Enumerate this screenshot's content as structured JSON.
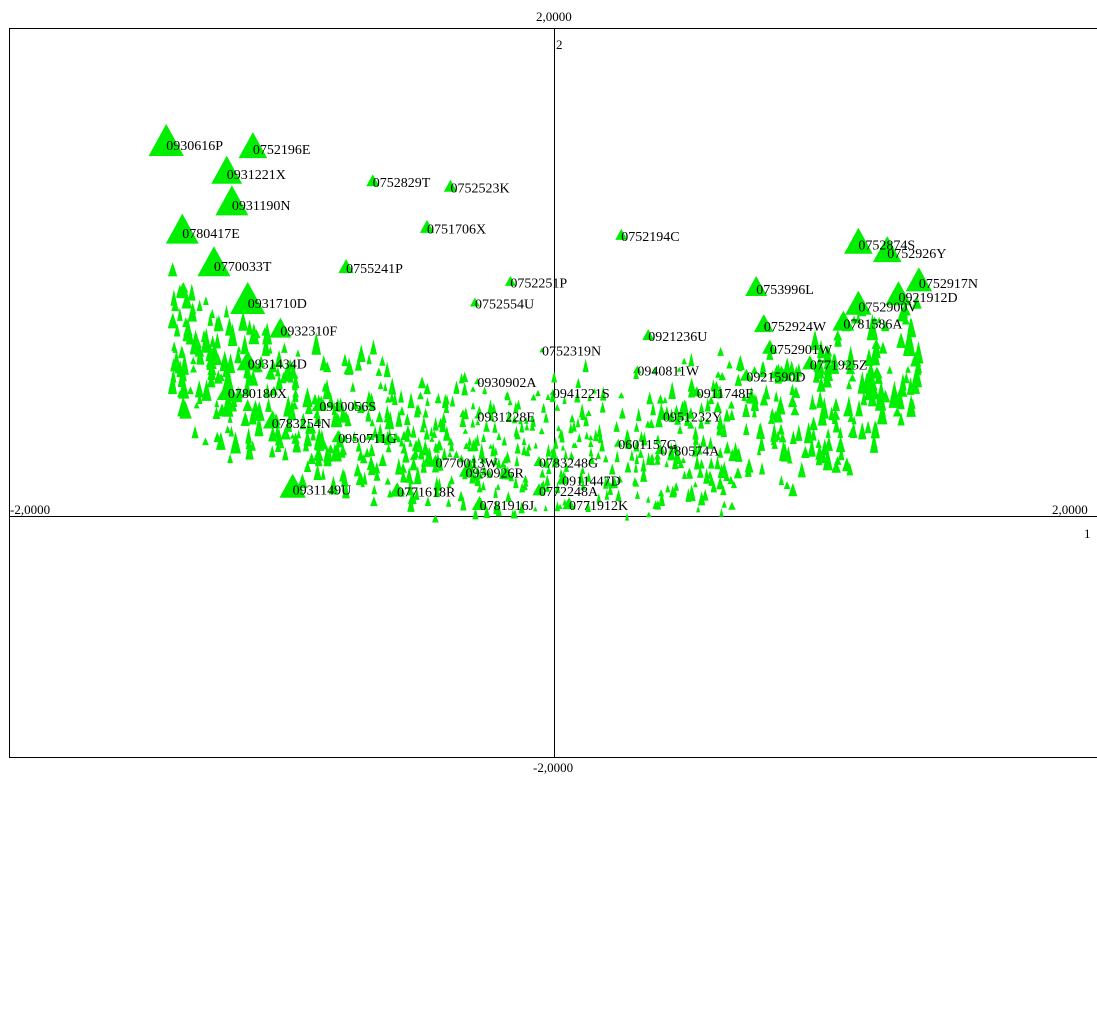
{
  "chart_data": {
    "type": "scatter",
    "title": "",
    "xlabel": "",
    "ylabel": "",
    "xlim": [
      -2,
      2
    ],
    "ylim": [
      -2,
      2
    ],
    "axis_labels": {
      "top": "2,0000",
      "bottom": "-2,0000",
      "left": "-2,0000",
      "right": "2,0000",
      "axis2": "2",
      "axis1": "1"
    },
    "marker_color": "#00ee00",
    "marker_shape": "triangle",
    "grid": false,
    "labeled_points": [
      {
        "label": "0930616P",
        "x": -1.423,
        "y": 1.36,
        "size": 3.2
      },
      {
        "label": "0752196E",
        "x": -1.105,
        "y": 1.337,
        "size": 2.6
      },
      {
        "label": "0931221X",
        "x": -1.201,
        "y": 1.2,
        "size": 2.8
      },
      {
        "label": "0752829T",
        "x": -0.665,
        "y": 1.156,
        "size": 1.2
      },
      {
        "label": "0752523K",
        "x": -0.38,
        "y": 1.126,
        "size": 1.2
      },
      {
        "label": "0931190N",
        "x": -1.182,
        "y": 1.031,
        "size": 3.0
      },
      {
        "label": "0780417E",
        "x": -1.364,
        "y": 0.876,
        "size": 3.0
      },
      {
        "label": "0751706X",
        "x": -0.466,
        "y": 0.902,
        "size": 1.3
      },
      {
        "label": "0752194C",
        "x": 0.247,
        "y": 0.86,
        "size": 1.1
      },
      {
        "label": "0752874S",
        "x": 1.117,
        "y": 0.813,
        "size": 2.6
      },
      {
        "label": "0752926Y",
        "x": 1.223,
        "y": 0.767,
        "size": 2.6
      },
      {
        "label": "0770033T",
        "x": -1.248,
        "y": 0.697,
        "size": 3.0
      },
      {
        "label": "0755241P",
        "x": -0.763,
        "y": 0.684,
        "size": 1.4
      },
      {
        "label": "0752251P",
        "x": -0.16,
        "y": 0.606,
        "size": 1.0
      },
      {
        "label": "0752917N",
        "x": 1.339,
        "y": 0.603,
        "size": 2.4
      },
      {
        "label": "0753996L",
        "x": 0.742,
        "y": 0.57,
        "size": 2.0
      },
      {
        "label": "0921912D",
        "x": 1.264,
        "y": 0.527,
        "size": 2.4
      },
      {
        "label": "0931710D",
        "x": -1.124,
        "y": 0.494,
        "size": 3.2
      },
      {
        "label": "0752554U",
        "x": -0.29,
        "y": 0.491,
        "size": 0.9
      },
      {
        "label": "0752900V",
        "x": 1.117,
        "y": 0.475,
        "size": 2.4
      },
      {
        "label": "0932310F",
        "x": -1.004,
        "y": 0.342,
        "size": 2.0
      },
      {
        "label": "0752924W",
        "x": 0.77,
        "y": 0.368,
        "size": 1.8
      },
      {
        "label": "0781586A",
        "x": 1.062,
        "y": 0.38,
        "size": 2.0
      },
      {
        "label": "0921236U",
        "x": 0.346,
        "y": 0.311,
        "size": 1.1
      },
      {
        "label": "0752319N",
        "x": -0.044,
        "y": 0.232,
        "size": 0.5
      },
      {
        "label": "0752901W",
        "x": 0.792,
        "y": 0.242,
        "size": 1.4
      },
      {
        "label": "0931434D",
        "x": -1.124,
        "y": 0.162,
        "size": 2.0
      },
      {
        "label": "0771925Z",
        "x": 0.939,
        "y": 0.156,
        "size": 1.4
      },
      {
        "label": "0940811W",
        "x": 0.306,
        "y": 0.123,
        "size": 0.8
      },
      {
        "label": "0921590D",
        "x": 0.706,
        "y": 0.09,
        "size": 1.2
      },
      {
        "label": "0930902A",
        "x": -0.281,
        "y": 0.06,
        "size": 0.6
      },
      {
        "label": "0780180X",
        "x": -1.197,
        "y": 0.0,
        "size": 2.0
      },
      {
        "label": "0941221S",
        "x": -0.004,
        "y": 0.0,
        "size": 0.6
      },
      {
        "label": "0911748F",
        "x": 0.524,
        "y": 0.0,
        "size": 1.0
      },
      {
        "label": "0910056S",
        "x": -0.861,
        "y": -0.072,
        "size": 1.4
      },
      {
        "label": "0931228E",
        "x": -0.281,
        "y": -0.128,
        "size": 0.6
      },
      {
        "label": "0951232Y",
        "x": 0.4,
        "y": -0.128,
        "size": 1.0
      },
      {
        "label": "0783254N",
        "x": -1.036,
        "y": -0.164,
        "size": 1.6
      },
      {
        "label": "0950711G",
        "x": -0.792,
        "y": -0.246,
        "size": 1.2
      },
      {
        "label": "0601157G",
        "x": 0.236,
        "y": -0.279,
        "size": 0.8
      },
      {
        "label": "0780574A",
        "x": 0.39,
        "y": -0.315,
        "size": 1.0
      },
      {
        "label": "0770013W",
        "x": -0.435,
        "y": -0.381,
        "size": 1.2
      },
      {
        "label": "0783248G",
        "x": -0.055,
        "y": -0.381,
        "size": 1.0
      },
      {
        "label": "0950926R",
        "x": -0.325,
        "y": -0.436,
        "size": 1.2
      },
      {
        "label": "0911447D",
        "x": 0.03,
        "y": -0.479,
        "size": 1.0
      },
      {
        "label": "0931149U",
        "x": -0.959,
        "y": -0.528,
        "size": 2.4
      },
      {
        "label": "0771618R",
        "x": -0.576,
        "y": -0.541,
        "size": 1.4
      },
      {
        "label": "0772248A",
        "x": -0.055,
        "y": -0.538,
        "size": 1.2
      },
      {
        "label": "0781916J",
        "x": -0.273,
        "y": -0.614,
        "size": 1.4
      },
      {
        "label": "0771912K",
        "x": 0.055,
        "y": -0.614,
        "size": 1.2
      }
    ]
  }
}
